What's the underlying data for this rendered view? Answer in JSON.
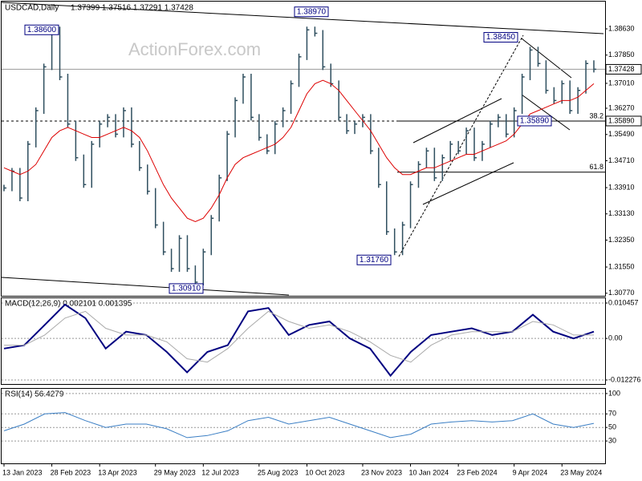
{
  "watermark": "ActionForex.com",
  "chart_data": [
    {
      "type": "bar",
      "title": "USDCAD,Daily",
      "subtitle": "1.37399 1.37516 1.37291 1.37428",
      "categories": [
        "13 Jan 2023",
        null,
        null,
        null,
        null,
        null,
        "28 Feb 2023",
        null,
        null,
        null,
        null,
        null,
        "13 Apr 2023",
        null,
        null,
        null,
        null,
        null,
        null,
        "29 May 2023",
        null,
        null,
        null,
        null,
        null,
        "12 Jul 2023",
        null,
        null,
        null,
        null,
        null,
        null,
        "25 Aug 2023",
        null,
        null,
        null,
        null,
        null,
        "10 Oct 2023",
        null,
        null,
        null,
        null,
        null,
        null,
        "23 Nov 2023",
        null,
        null,
        null,
        null,
        null,
        "10 Jan 2024",
        null,
        null,
        null,
        null,
        null,
        "23 Feb 2024",
        null,
        null,
        null,
        null,
        null,
        null,
        "9 Apr 2024",
        null,
        null,
        null,
        null,
        null,
        "23 May 2024",
        null,
        null,
        null,
        null
      ],
      "series": [
        {
          "name": "USDCAD",
          "color": "#2f4f5f",
          "values": [
            1.339,
            1.344,
            1.336,
            1.352,
            1.362,
            1.375,
            1.386,
            1.372,
            1.358,
            1.348,
            1.34,
            1.352,
            1.358,
            1.36,
            1.355,
            1.362,
            1.352,
            1.345,
            1.338,
            1.328,
            1.32,
            1.315,
            1.324,
            1.315,
            1.311,
            1.32,
            1.33,
            1.342,
            1.355,
            1.365,
            1.372,
            1.36,
            1.354,
            1.35,
            1.358,
            1.362,
            1.37,
            1.378,
            1.386,
            1.385,
            1.375,
            1.37,
            1.36,
            1.356,
            1.358,
            1.36,
            1.35,
            1.34,
            1.326,
            1.32,
            1.328,
            1.34,
            1.346,
            1.35,
            1.342,
            1.348,
            1.352,
            1.35,
            1.356,
            1.348,
            1.352,
            1.358,
            1.36,
            1.355,
            1.362,
            1.372,
            1.38,
            1.376,
            1.368,
            1.365,
            1.37,
            1.362,
            1.368,
            1.376,
            1.3743
          ]
        },
        {
          "color": "#dd0000",
          "values": [
            1.345,
            1.344,
            1.343,
            1.344,
            1.346,
            1.35,
            1.354,
            1.356,
            1.357,
            1.356,
            1.355,
            1.354,
            1.354,
            1.355,
            1.356,
            1.357,
            1.356,
            1.354,
            1.35,
            1.345,
            1.34,
            1.336,
            1.333,
            1.33,
            1.329,
            1.33,
            1.333,
            1.337,
            1.342,
            1.346,
            1.348,
            1.349,
            1.35,
            1.351,
            1.352,
            1.354,
            1.357,
            1.362,
            1.367,
            1.37,
            1.371,
            1.37,
            1.368,
            1.365,
            1.362,
            1.359,
            1.356,
            1.352,
            1.348,
            1.345,
            1.343,
            1.343,
            1.344,
            1.345,
            1.345,
            1.346,
            1.347,
            1.348,
            1.349,
            1.349,
            1.35,
            1.351,
            1.352,
            1.353,
            1.355,
            1.358,
            1.361,
            1.362,
            1.363,
            1.364,
            1.365,
            1.365,
            1.366,
            1.368,
            1.37
          ]
        }
      ],
      "ylim": [
        1.3067,
        1.3944
      ],
      "yticks": [
        {
          "value": 1.3863,
          "label": "1.38630"
        },
        {
          "value": 1.3785,
          "label": "1.37850"
        },
        {
          "value": 1.3701,
          "label": "1.37010"
        },
        {
          "value": 1.3627,
          "label": "1.36270"
        },
        {
          "value": 1.3549,
          "label": "1.35490"
        },
        {
          "value": 1.3471,
          "label": "1.34710"
        },
        {
          "value": 1.3391,
          "label": "1.33910"
        },
        {
          "value": 1.3313,
          "label": "1.33130"
        },
        {
          "value": 1.3235,
          "label": "1.32350"
        },
        {
          "value": 1.3155,
          "label": "1.31550"
        },
        {
          "value": 1.3077,
          "label": "1.30770"
        }
      ],
      "annotations": [
        {
          "value": 1.386,
          "label": "1.38600"
        },
        {
          "value": 1.3897,
          "label": "1.38970"
        },
        {
          "value": 1.3845,
          "label": "1.38450"
        },
        {
          "value": 1.3589,
          "label": "1.35890"
        },
        {
          "value": 1.3176,
          "label": "1.31760"
        },
        {
          "value": 1.3091,
          "label": "1.30910"
        }
      ],
      "price_tags": [
        {
          "value": 1.37428,
          "label": "1.37428"
        },
        {
          "value": 1.3589,
          "label": "1.35890"
        }
      ],
      "fib": [
        {
          "ratio": 38.2,
          "level": 1.3589
        },
        {
          "ratio": 61.8,
          "level": 1.3437
        }
      ]
    },
    {
      "type": "line",
      "title": "MACD(12,26,9) 0.002101 0.001395",
      "series": [
        {
          "color": "#000080",
          "values": [
            -0.003,
            -0.002,
            0.004,
            0.01,
            0.006,
            -0.003,
            0.002,
            0.001,
            -0.004,
            -0.01,
            -0.004,
            -0.002,
            0.008,
            0.009,
            0.001,
            0.004,
            0.005,
            0.0,
            -0.003,
            -0.011,
            -0.004,
            0.001,
            0.002,
            0.003,
            0.001,
            0.002,
            0.007,
            0.002,
            0.0,
            0.002
          ]
        },
        {
          "color": "#aaaaaa",
          "values": [
            -0.002,
            -0.002,
            0.001,
            0.006,
            0.008,
            0.003,
            0.001,
            0.001,
            -0.001,
            -0.006,
            -0.007,
            -0.003,
            0.003,
            0.008,
            0.005,
            0.003,
            0.004,
            0.002,
            -0.001,
            -0.005,
            -0.007,
            -0.002,
            0.001,
            0.002,
            0.002,
            0.002,
            0.005,
            0.004,
            0.001,
            0.001
          ]
        }
      ],
      "ylim": [
        -0.0137,
        0.01188
      ],
      "yticks": [
        0.010457,
        {
          "value": 0,
          "label": "0.00"
        },
        -0.012276
      ]
    },
    {
      "type": "line",
      "title": "RSI(14) 56.4279",
      "series": [
        {
          "color": "#3a7ec4",
          "values": [
            45,
            55,
            70,
            72,
            60,
            50,
            55,
            55,
            48,
            35,
            38,
            45,
            60,
            65,
            55,
            60,
            65,
            55,
            45,
            35,
            40,
            55,
            58,
            60,
            58,
            60,
            70,
            55,
            50,
            56
          ]
        }
      ],
      "ylim": [
        -3,
        107
      ],
      "yticks": [
        100,
        70,
        50,
        30
      ]
    }
  ]
}
